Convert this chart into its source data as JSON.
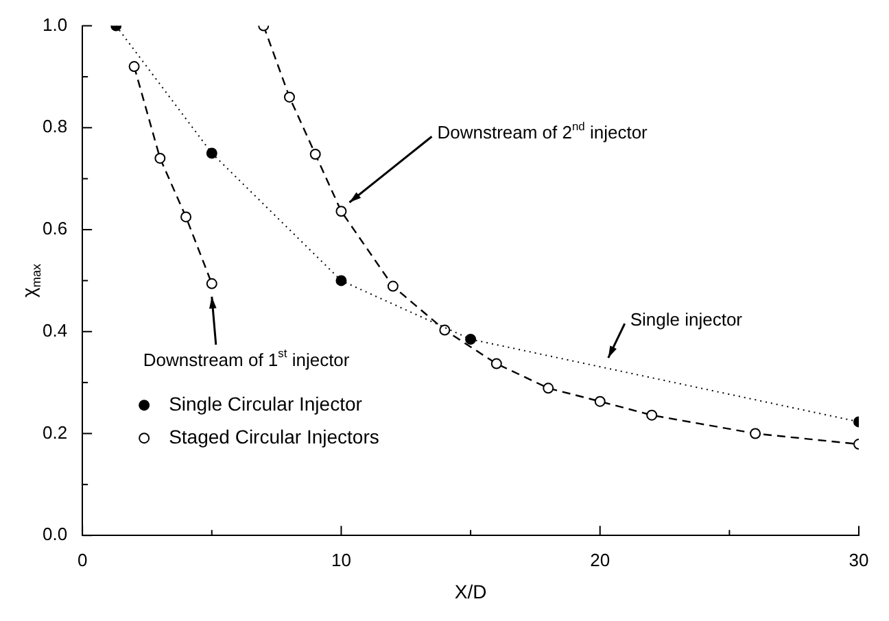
{
  "chart_data": {
    "type": "line",
    "xlabel": "X/D",
    "ylabel": "χ$_{max}$",
    "xlim": [
      0,
      30
    ],
    "xticks": [
      0,
      {
        "value": 5,
        "label": null
      },
      10,
      {
        "value": 15,
        "label": null
      },
      20,
      {
        "value": 25,
        "label": null
      },
      30
    ],
    "ylim": [
      0,
      1
    ],
    "yticks": [
      {
        "value": 0,
        "label": "0.0"
      },
      {
        "value": 0.1,
        "label": null
      },
      {
        "value": 0.2,
        "label": "0.2"
      },
      {
        "value": 0.3,
        "label": null
      },
      {
        "value": 0.4,
        "label": "0.4"
      },
      {
        "value": 0.5,
        "label": null
      },
      {
        "value": 0.6,
        "label": "0.6"
      },
      {
        "value": 0.7,
        "label": null
      },
      {
        "value": 0.8,
        "label": "0.8"
      },
      {
        "value": 0.9,
        "label": null
      },
      {
        "value": 1,
        "label": "1.0"
      }
    ],
    "grid": false,
    "legend": "bottom left",
    "series": [
      {
        "name": "Single Circular Injector",
        "color": "#000000",
        "marker": "circle",
        "line_style": "dotted",
        "x": [
          1.3,
          5,
          10,
          15,
          30
        ],
        "values": [
          1.0,
          0.75,
          0.5,
          0.385,
          0.223
        ]
      },
      {
        "name": "Staged Circular Injectors",
        "color": "#000000",
        "marker": "circle",
        "line_style": "dashed",
        "x": [
          2,
          3,
          4,
          5,
          6,
          7,
          8,
          9,
          10,
          12,
          14,
          16,
          18,
          20,
          22,
          26,
          30
        ],
        "values": [
          0.92,
          0.74,
          0.625,
          0.494,
          null,
          1.0,
          0.86,
          0.748,
          0.636,
          0.489,
          0.403,
          0.337,
          0.289,
          0.263,
          0.236,
          0.2,
          0.179
        ]
      }
    ],
    "annotations": [
      {
        "text": "Downstream of 2$^{nd}$ injector",
        "x": 10,
        "y": 0.64
      },
      {
        "text": "Downstream of 1$^{st}$ injector",
        "x": 5,
        "y": 0.49
      },
      {
        "text": "Single injector",
        "x": 20,
        "y": 0.335
      }
    ]
  }
}
